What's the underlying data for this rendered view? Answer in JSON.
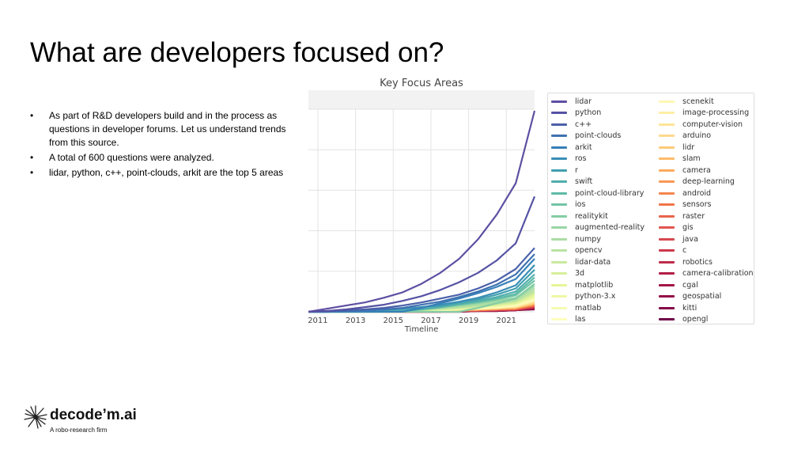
{
  "slide": {
    "title": "What are developers focused on?",
    "bullets": [
      "As part of R&D developers build and in the process as questions in developer forums. Let us understand trends from this source.",
      "A total of 600 questions were analyzed.",
      "lidar, python, c++, point-clouds, arkit are the top 5 areas"
    ]
  },
  "logo": {
    "name": "decode’m.ai",
    "tagline": "A robo-research firm"
  },
  "chart_data": {
    "type": "line",
    "title": "Key Focus Areas",
    "xlabel": "Timeline",
    "ylabel": "",
    "x_ticks": [
      "2011",
      "2013",
      "2015",
      "2017",
      "2019",
      "2021"
    ],
    "xlim": [
      2010.5,
      2022.5
    ],
    "ylim": [
      0,
      260
    ],
    "grid": true,
    "legend_position": "right",
    "x": [
      2010.5,
      2011.5,
      2012.5,
      2013.5,
      2014.5,
      2015.5,
      2016.5,
      2017.5,
      2018.5,
      2019.5,
      2020.5,
      2021.5,
      2022.5
    ],
    "series": [
      {
        "name": "lidar",
        "color": "#5e4fa2",
        "values": [
          0,
          4,
          8,
          12,
          18,
          25,
          36,
          50,
          68,
          93,
          125,
          165,
          258
        ]
      },
      {
        "name": "python",
        "color": "#5552a3",
        "values": [
          0,
          1,
          3,
          6,
          9,
          14,
          20,
          28,
          38,
          50,
          66,
          88,
          148
        ]
      },
      {
        "name": "c++",
        "color": "#4a60a9",
        "values": [
          0,
          1,
          2,
          3,
          5,
          8,
          12,
          17,
          22,
          30,
          40,
          55,
          82
        ]
      },
      {
        "name": "point-clouds",
        "color": "#3f72b1",
        "values": [
          0,
          0,
          1,
          2,
          3,
          5,
          9,
          13,
          19,
          26,
          35,
          48,
          74
        ]
      },
      {
        "name": "arkit",
        "color": "#3780b8",
        "values": [
          0,
          0,
          0,
          0,
          0,
          0,
          5,
          11,
          17,
          24,
          32,
          42,
          68
        ]
      },
      {
        "name": "ros",
        "color": "#3a8fb5",
        "values": [
          0,
          0,
          1,
          2,
          3,
          4,
          6,
          9,
          13,
          18,
          25,
          34,
          60
        ]
      },
      {
        "name": "r",
        "color": "#429fb0",
        "values": [
          0,
          0,
          1,
          1,
          2,
          4,
          6,
          8,
          12,
          16,
          22,
          30,
          54
        ]
      },
      {
        "name": "swift",
        "color": "#50aeac",
        "values": [
          0,
          0,
          0,
          0,
          0,
          1,
          3,
          6,
          10,
          14,
          19,
          26,
          48
        ]
      },
      {
        "name": "point-cloud-library",
        "color": "#5fbaa8",
        "values": [
          0,
          0,
          1,
          1,
          2,
          3,
          5,
          7,
          10,
          13,
          17,
          23,
          44
        ]
      },
      {
        "name": "ios",
        "color": "#71c4a5",
        "values": [
          0,
          0,
          0,
          1,
          1,
          2,
          4,
          6,
          9,
          12,
          16,
          21,
          40
        ]
      },
      {
        "name": "realitykit",
        "color": "#84cda4",
        "values": [
          0,
          0,
          0,
          0,
          0,
          0,
          0,
          0,
          0,
          5,
          11,
          17,
          36
        ]
      },
      {
        "name": "augmented-reality",
        "color": "#98d6a4",
        "values": [
          0,
          0,
          0,
          0,
          0,
          1,
          3,
          5,
          8,
          11,
          14,
          18,
          33
        ]
      },
      {
        "name": "numpy",
        "color": "#abdda4",
        "values": [
          0,
          0,
          0,
          1,
          1,
          2,
          3,
          5,
          7,
          9,
          12,
          16,
          30
        ]
      },
      {
        "name": "opencv",
        "color": "#bae3a1",
        "values": [
          0,
          0,
          0,
          1,
          1,
          2,
          3,
          4,
          6,
          8,
          11,
          14,
          27
        ]
      },
      {
        "name": "lidar-data",
        "color": "#c9e99e",
        "values": [
          0,
          0,
          0,
          0,
          1,
          1,
          2,
          4,
          5,
          7,
          10,
          13,
          25
        ]
      },
      {
        "name": "3d",
        "color": "#d8ef9b",
        "values": [
          0,
          0,
          0,
          0,
          1,
          1,
          2,
          3,
          5,
          7,
          9,
          12,
          23
        ]
      },
      {
        "name": "matplotlib",
        "color": "#e6f598",
        "values": [
          0,
          0,
          0,
          0,
          1,
          1,
          2,
          3,
          4,
          6,
          8,
          11,
          21
        ]
      },
      {
        "name": "python-3.x",
        "color": "#eef8a5",
        "values": [
          0,
          0,
          0,
          0,
          0,
          1,
          2,
          3,
          4,
          6,
          8,
          10,
          19
        ]
      },
      {
        "name": "matlab",
        "color": "#f6fbb2",
        "values": [
          0,
          0,
          0,
          0,
          1,
          1,
          2,
          3,
          4,
          5,
          7,
          9,
          18
        ]
      },
      {
        "name": "las",
        "color": "#fdfdbd",
        "values": [
          0,
          0,
          0,
          0,
          0,
          1,
          1,
          2,
          3,
          5,
          6,
          8,
          16
        ]
      },
      {
        "name": "scenekit",
        "color": "#fff7b2",
        "values": [
          0,
          0,
          0,
          0,
          0,
          1,
          1,
          2,
          3,
          4,
          6,
          8,
          15
        ]
      },
      {
        "name": "image-processing",
        "color": "#feeea5",
        "values": [
          0,
          0,
          0,
          0,
          0,
          1,
          1,
          2,
          3,
          4,
          5,
          7,
          14
        ]
      },
      {
        "name": "computer-vision",
        "color": "#fee598",
        "values": [
          0,
          0,
          0,
          0,
          0,
          1,
          1,
          2,
          3,
          4,
          5,
          7,
          13
        ]
      },
      {
        "name": "arduino",
        "color": "#fed98b",
        "values": [
          0,
          0,
          0,
          0,
          0,
          0,
          1,
          2,
          3,
          4,
          5,
          6,
          12
        ]
      },
      {
        "name": "lidr",
        "color": "#fdca79",
        "values": [
          0,
          0,
          0,
          0,
          0,
          0,
          1,
          2,
          2,
          3,
          4,
          6,
          11
        ]
      },
      {
        "name": "slam",
        "color": "#fdbb6a",
        "values": [
          0,
          0,
          0,
          0,
          0,
          0,
          1,
          1,
          2,
          3,
          4,
          5,
          11
        ]
      },
      {
        "name": "camera",
        "color": "#fcaa5f",
        "values": [
          0,
          0,
          0,
          0,
          0,
          0,
          1,
          1,
          2,
          3,
          4,
          5,
          10
        ]
      },
      {
        "name": "deep-learning",
        "color": "#f99855",
        "values": [
          0,
          0,
          0,
          0,
          0,
          0,
          1,
          1,
          2,
          3,
          4,
          5,
          9
        ]
      },
      {
        "name": "android",
        "color": "#f6864e",
        "values": [
          0,
          0,
          0,
          0,
          0,
          0,
          1,
          1,
          2,
          2,
          3,
          4,
          9
        ]
      },
      {
        "name": "sensors",
        "color": "#f07547",
        "values": [
          0,
          0,
          0,
          0,
          0,
          0,
          1,
          1,
          2,
          2,
          3,
          4,
          8
        ]
      },
      {
        "name": "raster",
        "color": "#e8644b",
        "values": [
          0,
          0,
          0,
          0,
          0,
          0,
          1,
          1,
          1,
          2,
          3,
          4,
          8
        ]
      },
      {
        "name": "gis",
        "color": "#e0564e",
        "values": [
          0,
          0,
          0,
          0,
          0,
          0,
          1,
          1,
          1,
          2,
          3,
          3,
          7
        ]
      },
      {
        "name": "java",
        "color": "#d74850",
        "values": [
          0,
          0,
          0,
          0,
          0,
          0,
          0,
          1,
          1,
          2,
          2,
          3,
          7
        ]
      },
      {
        "name": "c",
        "color": "#cb3a4d",
        "values": [
          0,
          0,
          0,
          0,
          0,
          0,
          0,
          1,
          1,
          2,
          2,
          3,
          6
        ]
      },
      {
        "name": "robotics",
        "color": "#bf2c4a",
        "values": [
          0,
          0,
          0,
          0,
          0,
          0,
          0,
          1,
          1,
          1,
          2,
          3,
          6
        ]
      },
      {
        "name": "camera-calibration",
        "color": "#b11e48",
        "values": [
          0,
          0,
          0,
          0,
          0,
          0,
          0,
          1,
          1,
          1,
          2,
          2,
          5
        ]
      },
      {
        "name": "cgal",
        "color": "#a31547",
        "values": [
          0,
          0,
          0,
          0,
          0,
          0,
          0,
          0,
          1,
          1,
          2,
          2,
          5
        ]
      },
      {
        "name": "geospatial",
        "color": "#930e49",
        "values": [
          0,
          0,
          0,
          0,
          0,
          0,
          0,
          0,
          1,
          1,
          1,
          2,
          4
        ]
      },
      {
        "name": "kitti",
        "color": "#830849",
        "values": [
          0,
          0,
          0,
          0,
          0,
          0,
          0,
          0,
          0,
          1,
          1,
          2,
          4
        ]
      },
      {
        "name": "opengl",
        "color": "#6e0447",
        "values": [
          0,
          0,
          0,
          0,
          0,
          0,
          0,
          0,
          0,
          1,
          1,
          2,
          3
        ]
      }
    ]
  }
}
